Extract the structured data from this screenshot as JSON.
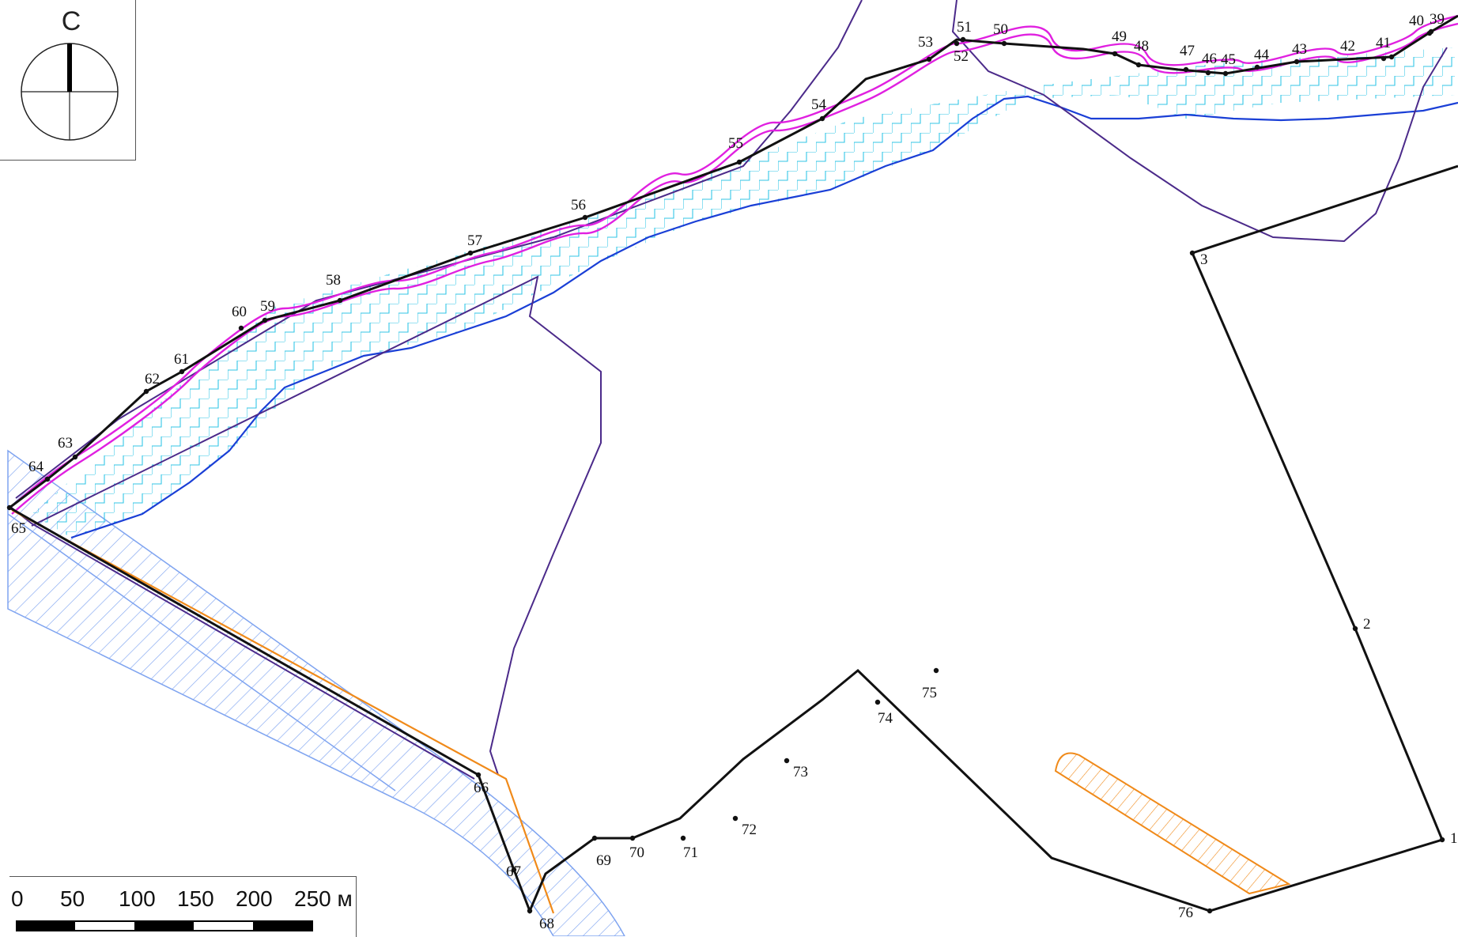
{
  "compass": {
    "north_letter": "С"
  },
  "scale_bar": {
    "ticks": [
      "0",
      "50",
      "100",
      "150",
      "200",
      "250 м"
    ]
  },
  "points": [
    {
      "id": "2",
      "label": "2"
    },
    {
      "id": "3",
      "label": "3"
    },
    {
      "id": "39",
      "label": "39"
    },
    {
      "id": "40",
      "label": "40"
    },
    {
      "id": "41",
      "label": "41"
    },
    {
      "id": "42",
      "label": "42"
    },
    {
      "id": "43",
      "label": "43"
    },
    {
      "id": "44",
      "label": "44"
    },
    {
      "id": "45",
      "label": "45"
    },
    {
      "id": "46",
      "label": "46"
    },
    {
      "id": "47",
      "label": "47"
    },
    {
      "id": "48",
      "label": "48"
    },
    {
      "id": "49",
      "label": "49"
    },
    {
      "id": "50",
      "label": "50"
    },
    {
      "id": "51",
      "label": "51"
    },
    {
      "id": "52",
      "label": "52"
    },
    {
      "id": "53",
      "label": "53"
    },
    {
      "id": "54",
      "label": "54"
    },
    {
      "id": "55",
      "label": "55"
    },
    {
      "id": "56",
      "label": "56"
    },
    {
      "id": "57",
      "label": "57"
    },
    {
      "id": "58",
      "label": "58"
    },
    {
      "id": "59",
      "label": "59"
    },
    {
      "id": "60",
      "label": "60"
    },
    {
      "id": "61",
      "label": "61"
    },
    {
      "id": "62",
      "label": "62"
    },
    {
      "id": "63",
      "label": "63"
    },
    {
      "id": "64",
      "label": "64"
    },
    {
      "id": "65",
      "label": "65"
    },
    {
      "id": "66",
      "label": "66"
    },
    {
      "id": "67",
      "label": "67"
    },
    {
      "id": "68",
      "label": "68"
    },
    {
      "id": "69",
      "label": "69"
    },
    {
      "id": "70",
      "label": "70"
    },
    {
      "id": "71",
      "label": "71"
    },
    {
      "id": "72",
      "label": "72"
    },
    {
      "id": "73",
      "label": "73"
    },
    {
      "id": "74",
      "label": "74"
    },
    {
      "id": "75",
      "label": "75"
    },
    {
      "id": "76",
      "label": "76"
    },
    {
      "id": "1",
      "label": "1"
    }
  ],
  "colors": {
    "boundary": "#111111",
    "purple_line": "#4b2a8a",
    "blue_line": "#1a3fd6",
    "cyan_hatch": "#33c6e6",
    "magenta": "#e020e0",
    "orange": "#f08a1a",
    "light_blue": "#7fa4f0"
  }
}
